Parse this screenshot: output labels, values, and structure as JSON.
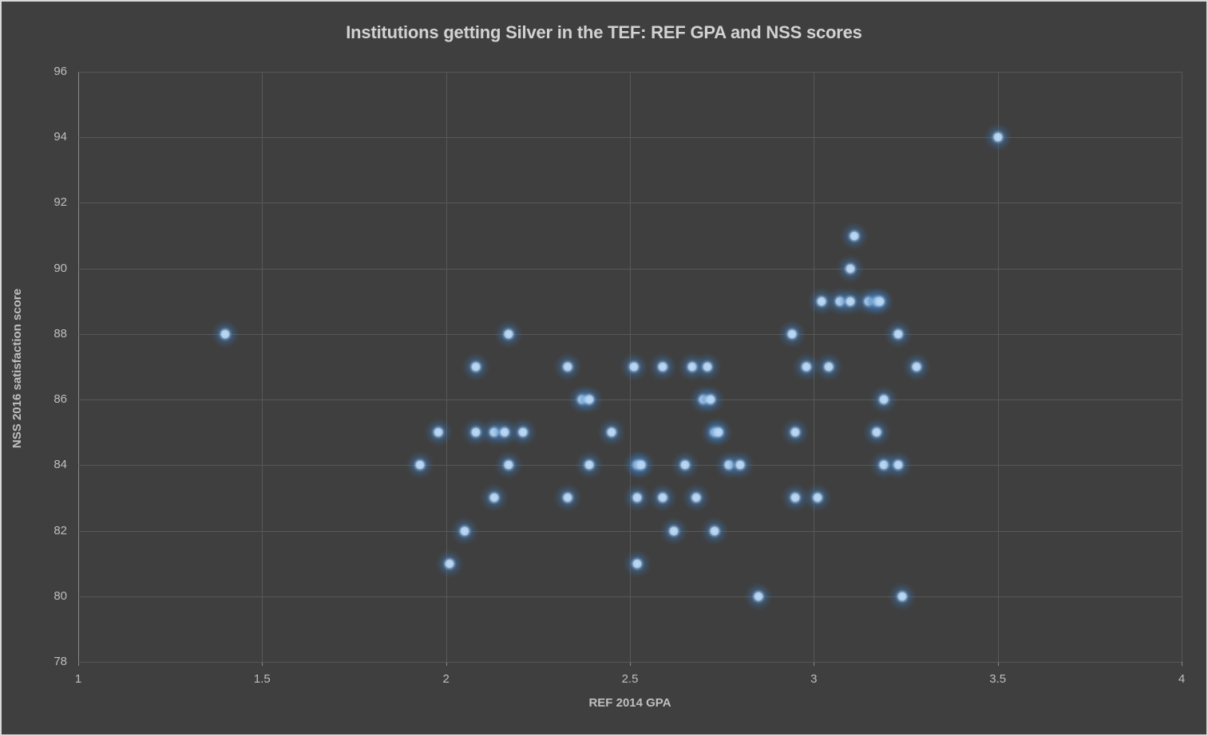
{
  "chart_data": {
    "type": "scatter",
    "title": "Institutions getting Silver in the TEF: REF GPA and NSS scores",
    "xlabel": "REF 2014 GPA",
    "ylabel": "NSS 2016 satisfaction score",
    "xlim": [
      1,
      4
    ],
    "ylim": [
      78,
      96
    ],
    "xticks": [
      "1",
      "1.5",
      "2",
      "2.5",
      "3",
      "3.5",
      "4"
    ],
    "yticks": [
      "78",
      "80",
      "82",
      "84",
      "86",
      "88",
      "90",
      "92",
      "94",
      "96"
    ],
    "grid": true,
    "legend": "none",
    "colors": {
      "background": "#3F3F3F",
      "gridline": "#585858",
      "axis_line": "#8A8A8A",
      "tick_text": "#BFBFBF",
      "title_text": "#D2D2D2",
      "marker_center": "#AECFF0",
      "marker_glow": "#2E75B6",
      "frame_border": "#D9D9D9"
    },
    "points": [
      [
        3.5,
        94
      ],
      [
        3.11,
        91
      ],
      [
        3.1,
        90
      ],
      [
        3.02,
        89
      ],
      [
        3.07,
        89
      ],
      [
        3.1,
        89
      ],
      [
        3.15,
        89
      ],
      [
        3.17,
        89
      ],
      [
        3.18,
        89
      ],
      [
        1.4,
        88
      ],
      [
        2.17,
        88
      ],
      [
        2.94,
        88
      ],
      [
        3.23,
        88
      ],
      [
        2.08,
        87
      ],
      [
        2.33,
        87
      ],
      [
        2.51,
        87
      ],
      [
        2.59,
        87
      ],
      [
        2.67,
        87
      ],
      [
        2.71,
        87
      ],
      [
        2.98,
        87
      ],
      [
        3.04,
        87
      ],
      [
        3.28,
        87
      ],
      [
        2.37,
        86
      ],
      [
        2.39,
        86
      ],
      [
        2.7,
        86
      ],
      [
        2.72,
        86
      ],
      [
        3.19,
        86
      ],
      [
        1.98,
        85
      ],
      [
        2.08,
        85
      ],
      [
        2.13,
        85
      ],
      [
        2.16,
        85
      ],
      [
        2.21,
        85
      ],
      [
        2.45,
        85
      ],
      [
        2.73,
        85
      ],
      [
        2.74,
        85
      ],
      [
        2.95,
        85
      ],
      [
        3.17,
        85
      ],
      [
        1.93,
        84
      ],
      [
        2.17,
        84
      ],
      [
        2.39,
        84
      ],
      [
        2.52,
        84
      ],
      [
        2.53,
        84
      ],
      [
        2.65,
        84
      ],
      [
        2.77,
        84
      ],
      [
        2.8,
        84
      ],
      [
        3.19,
        84
      ],
      [
        3.23,
        84
      ],
      [
        2.13,
        83
      ],
      [
        2.33,
        83
      ],
      [
        2.52,
        83
      ],
      [
        2.59,
        83
      ],
      [
        2.68,
        83
      ],
      [
        2.95,
        83
      ],
      [
        3.01,
        83
      ],
      [
        2.05,
        82
      ],
      [
        2.62,
        82
      ],
      [
        2.73,
        82
      ],
      [
        2.01,
        81
      ],
      [
        2.52,
        81
      ],
      [
        2.85,
        80
      ],
      [
        3.24,
        80
      ]
    ]
  }
}
